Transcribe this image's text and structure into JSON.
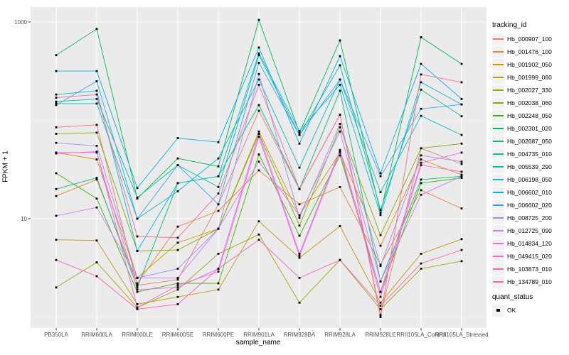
{
  "figure": {
    "background": "#ffffff",
    "panel_background": "#ebebeb",
    "grid_major_color": "#ffffff",
    "grid_minor_color": "#ffffff",
    "tick_color": "#333333",
    "axis_text_color": "#4d4d4d",
    "point_color": "#000000"
  },
  "chart_data": {
    "type": "line",
    "title": "",
    "xlabel": "sample_name",
    "ylabel": "FPKM + 1",
    "y_scale": "log10",
    "y_ticks": [
      1000,
      10
    ],
    "y_tick_labels": [
      "1000",
      "10"
    ],
    "y_minor_ticks": [
      100,
      1
    ],
    "ylim_log10": [
      -0.1,
      3.15
    ],
    "grid": true,
    "legend_position": "right",
    "legend_title": "tracking_id",
    "quant_status": {
      "title": "quant_status",
      "items": [
        "OK"
      ]
    },
    "categories": [
      "PB350LA",
      "RRIM600LA",
      "RRIM600LE",
      "RRIM600SE",
      "RRIM600PE",
      "RRIM901LA",
      "RRIM928BA",
      "RRIM928LA",
      "RRIM928LE",
      "RRII105LA_Control",
      "RRII105LA_Stressed"
    ],
    "series": [
      {
        "name": "Hb_000907_100",
        "color": "#F8766D",
        "values": [
          85,
          90,
          2.1,
          2.4,
          14,
          125,
          20,
          114,
          1.05,
          52,
          36
        ]
      },
      {
        "name": "Hb_001476_100",
        "color": "#EA8331",
        "values": [
          17,
          25,
          2.2,
          8.3,
          12,
          31,
          14,
          21,
          3.4,
          19.5,
          12.7
        ]
      },
      {
        "name": "Hb_001902_050",
        "color": "#D89000",
        "values": [
          47,
          40,
          2.5,
          5.7,
          7.9,
          77,
          10.8,
          47,
          5.3,
          40,
          28
        ]
      },
      {
        "name": "Hb_001999_060",
        "color": "#C09B00",
        "values": [
          6.1,
          6.0,
          1.35,
          1.6,
          1.9,
          9.4,
          4.0,
          8.4,
          1.4,
          4.4,
          6.2
        ]
      },
      {
        "name": "Hb_002027_330",
        "color": "#A3A500",
        "values": [
          2.0,
          3.6,
          1.25,
          1.9,
          4.4,
          6.9,
          1.4,
          3.8,
          1.2,
          3.1,
          3.7
        ]
      },
      {
        "name": "Hb_002038_060",
        "color": "#7CAE00",
        "values": [
          73,
          75,
          4.7,
          4.8,
          7.9,
          73,
          8.5,
          85,
          6.8,
          52,
          58
        ]
      },
      {
        "name": "Hb_002248_050",
        "color": "#39B600",
        "values": [
          29,
          16,
          1.8,
          2.2,
          2.2,
          45,
          6.7,
          44,
          1.8,
          23,
          26
        ]
      },
      {
        "name": "Hb_002301_020",
        "color": "#00BB4E",
        "values": [
          460,
          850,
          16,
          41,
          34,
          1050,
          75,
          650,
          11.5,
          700,
          375
        ]
      },
      {
        "name": "Hb_002687_050",
        "color": "#00BF7D",
        "values": [
          20,
          26,
          2.0,
          23,
          27,
          143,
          20,
          200,
          2.3,
          25,
          27
        ]
      },
      {
        "name": "Hb_004735_010",
        "color": "#00C1A3",
        "values": [
          155,
          165,
          16.4,
          35,
          21,
          460,
          71,
          363,
          12.3,
          205,
          110
        ]
      },
      {
        "name": "Hb_005539_290",
        "color": "#00BFC4",
        "values": [
          148,
          148,
          10,
          19,
          41,
          260,
          33,
          260,
          18.6,
          111,
          71
        ]
      },
      {
        "name": "Hb_006198_050",
        "color": "#00BAE0",
        "values": [
          183,
          200,
          4.7,
          23,
          27,
          480,
          78,
          230,
          10.9,
          244,
          145
        ]
      },
      {
        "name": "Hb_006602_010",
        "color": "#00B0F6",
        "values": [
          317,
          317,
          20.5,
          66,
          60,
          550,
          58,
          450,
          29,
          375,
          165
        ]
      },
      {
        "name": "Hb_006602_020",
        "color": "#35A2FF",
        "values": [
          143,
          250,
          10,
          35,
          14,
          385,
          71,
          260,
          27,
          131,
          145
        ]
      },
      {
        "name": "Hb_008725_200",
        "color": "#9590FF",
        "values": [
          59,
          55,
          2.5,
          3.1,
          7.9,
          296,
          10.2,
          92,
          3.3,
          44,
          38
        ]
      },
      {
        "name": "Hb_012725_090",
        "color": "#C77CFF",
        "values": [
          10.7,
          13,
          2.5,
          2.5,
          7.9,
          38,
          10.8,
          77,
          2.3,
          17.5,
          27
        ]
      },
      {
        "name": "Hb_014834_120",
        "color": "#E76BF3",
        "values": [
          47,
          47,
          1.9,
          2.0,
          3.1,
          73,
          4.4,
          50,
          1.8,
          37,
          47
        ]
      },
      {
        "name": "Hb_049415_020",
        "color": "#FA62DB",
        "values": [
          46,
          48,
          1.25,
          2.1,
          2.9,
          68,
          4.2,
          48,
          1.6,
          35,
          30
        ]
      },
      {
        "name": "Hb_103873_010",
        "color": "#FF62BC",
        "values": [
          3.8,
          2.6,
          1.2,
          1.35,
          3.1,
          6.1,
          2.5,
          3.8,
          1.3,
          3.5,
          4.8
        ]
      },
      {
        "name": "Hb_134789_010",
        "color": "#FF6A98",
        "values": [
          170,
          183,
          6.6,
          6.4,
          18,
          230,
          20,
          114,
          1.0,
          293,
          244
        ]
      }
    ]
  }
}
